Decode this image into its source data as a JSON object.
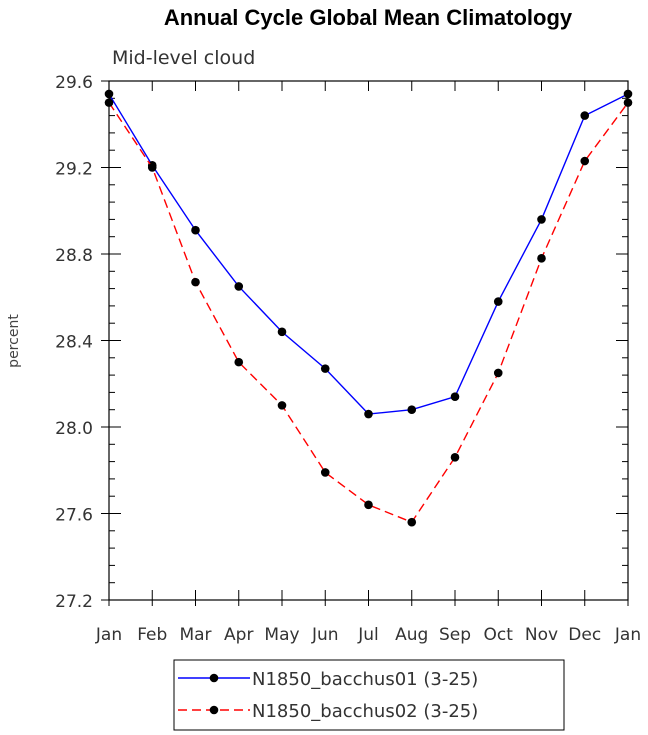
{
  "chart_data": {
    "type": "line",
    "title": "Annual Cycle Global Mean Climatology",
    "subtitle": "Mid-level cloud",
    "ylabel": "percent",
    "xlabel": "",
    "categories": [
      "Jan",
      "Feb",
      "Mar",
      "Apr",
      "May",
      "Jun",
      "Jul",
      "Aug",
      "Sep",
      "Oct",
      "Nov",
      "Dec",
      "Jan"
    ],
    "ylim": [
      27.2,
      29.6
    ],
    "yticks": [
      "27.2",
      "27.6",
      "28.0",
      "28.4",
      "28.8",
      "29.2",
      "29.6"
    ],
    "series": [
      {
        "name": "N1850_bacchus01 (3-25)",
        "color": "#0000ff",
        "dash": "solid",
        "values": [
          29.54,
          29.21,
          28.91,
          28.65,
          28.44,
          28.27,
          28.06,
          28.08,
          28.14,
          28.58,
          28.96,
          29.44,
          29.54
        ]
      },
      {
        "name": "N1850_bacchus02 (3-25)",
        "color": "#ff0000",
        "dash": "dashed",
        "values": [
          29.5,
          29.2,
          28.67,
          28.3,
          28.1,
          27.79,
          27.64,
          27.56,
          27.86,
          28.25,
          28.78,
          29.23,
          29.5
        ]
      }
    ],
    "legend": "bottom-center",
    "grid": false
  }
}
